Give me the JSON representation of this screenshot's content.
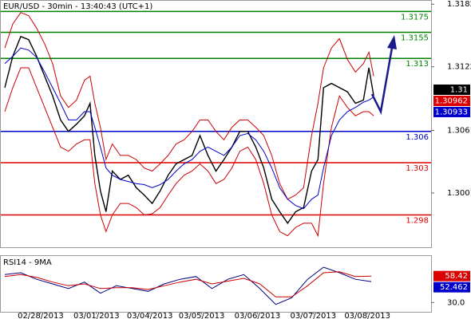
{
  "chart_data": [
    {
      "type": "line",
      "title": "EUR/USD - 30min - 13:40:43 (UTC+1)",
      "xlim": [
        0,
        540
      ],
      "ylim": [
        1.2949,
        1.3186
      ],
      "yticks": [
        1.3182,
        1.3122,
        1.3061,
        1.3001
      ],
      "x": [
        5,
        15,
        25,
        35,
        45,
        55,
        65,
        75,
        85,
        95,
        105,
        112,
        118,
        125,
        132,
        140,
        150,
        160,
        170,
        180,
        190,
        200,
        210,
        220,
        230,
        240,
        250,
        260,
        270,
        280,
        290,
        300,
        310,
        320,
        330,
        340,
        350,
        360,
        370,
        380,
        390,
        398,
        405,
        415,
        425,
        435,
        445,
        455,
        462,
        468
      ],
      "series": [
        {
          "color": "#000000",
          "values": [
            1.3102,
            1.3132,
            1.3151,
            1.3148,
            1.3132,
            1.3113,
            1.3094,
            1.3071,
            1.306,
            1.3067,
            1.3075,
            1.3087,
            1.3037,
            1.3003,
            1.2983,
            1.3022,
            1.3014,
            1.3018,
            1.3006,
            1.2999,
            1.2991,
            1.3003,
            1.3018,
            1.3029,
            1.3033,
            1.3037,
            1.3056,
            1.3037,
            1.3022,
            1.3033,
            1.3045,
            1.306,
            1.306,
            1.3045,
            1.3025,
            1.2995,
            1.2983,
            1.2972,
            1.2983,
            1.2987,
            1.3022,
            1.3033,
            1.3102,
            1.3106,
            1.3102,
            1.3098,
            1.3087,
            1.309,
            1.3121,
            1.3094
          ]
        },
        {
          "color": "#cc0000",
          "values": [
            1.314,
            1.3163,
            1.3174,
            1.3171,
            1.3159,
            1.3144,
            1.3125,
            1.3094,
            1.3083,
            1.309,
            1.3109,
            1.3113,
            1.3087,
            1.3064,
            1.3033,
            1.3048,
            1.3037,
            1.3037,
            1.3033,
            1.3025,
            1.3022,
            1.3029,
            1.3037,
            1.3048,
            1.3052,
            1.306,
            1.3071,
            1.3071,
            1.306,
            1.3052,
            1.3064,
            1.3071,
            1.3071,
            1.3064,
            1.3056,
            1.3037,
            1.301,
            1.2995,
            1.2999,
            1.3006,
            1.3056,
            1.3087,
            1.3121,
            1.314,
            1.3149,
            1.3129,
            1.3117,
            1.3125,
            1.3136,
            1.3113
          ]
        },
        {
          "color": "#cc0000",
          "values": [
            1.3079,
            1.3102,
            1.3121,
            1.3121,
            1.3102,
            1.3083,
            1.3064,
            1.3045,
            1.3041,
            1.3048,
            1.3052,
            1.3052,
            1.301,
            1.298,
            1.2964,
            1.298,
            1.2991,
            1.2991,
            1.2987,
            1.298,
            1.2981,
            1.2987,
            1.2999,
            1.301,
            1.3018,
            1.3022,
            1.3029,
            1.3022,
            1.301,
            1.3014,
            1.3025,
            1.3041,
            1.3045,
            1.3033,
            1.301,
            1.298,
            1.2964,
            1.296,
            1.2968,
            1.2972,
            1.2972,
            1.296,
            1.301,
            1.3064,
            1.3094,
            1.3083,
            1.3075,
            1.3079,
            1.3079,
            1.3075
          ]
        },
        {
          "color": "#0000cc",
          "values": [
            1.3125,
            1.3132,
            1.314,
            1.3138,
            1.3131,
            1.3117,
            1.3102,
            1.3087,
            1.3071,
            1.3071,
            1.3079,
            1.3079,
            1.3064,
            1.3045,
            1.3025,
            1.3018,
            1.3014,
            1.3012,
            1.301,
            1.3009,
            1.3006,
            1.3009,
            1.3014,
            1.3022,
            1.3029,
            1.3033,
            1.3041,
            1.3045,
            1.3041,
            1.3037,
            1.3045,
            1.3056,
            1.3058,
            1.3052,
            1.3041,
            1.3025,
            1.3006,
            1.2995,
            1.2989,
            1.2986,
            1.2995,
            1.2999,
            1.3025,
            1.3056,
            1.3071,
            1.3079,
            1.3083,
            1.3088,
            1.309,
            1.3093
          ]
        }
      ],
      "levels": [
        {
          "value": 1.3175,
          "color": "#008000"
        },
        {
          "value": 1.3155,
          "color": "#008000"
        },
        {
          "value": 1.313,
          "color": "#008000"
        },
        {
          "value": 1.306,
          "color": "#0000cc"
        },
        {
          "value": 1.303,
          "color": "#dd0000"
        },
        {
          "value": 1.298,
          "color": "#dd0000"
        }
      ],
      "markers": [
        {
          "value": 1.31,
          "color": "#000000"
        },
        {
          "value": 1.30962,
          "color": "#dd0000"
        },
        {
          "value": 1.30933,
          "color": "#0000cc"
        }
      ]
    },
    {
      "type": "line",
      "title": "RSI14 - 9MA",
      "xlim": [
        0,
        540
      ],
      "ylim": [
        20,
        80
      ],
      "yticks": [
        {
          "value": 30,
          "label": "30.0"
        }
      ],
      "xticks": [
        {
          "value": 50,
          "label": "02/28/2013"
        },
        {
          "value": 120,
          "label": "03/01/2013"
        },
        {
          "value": 187,
          "label": "03/04/2013"
        },
        {
          "value": 252,
          "label": "03/05/2013"
        },
        {
          "value": 322,
          "label": "03/06/2013"
        },
        {
          "value": 392,
          "label": "03/07/2013"
        },
        {
          "value": 460,
          "label": "03/08/2013"
        }
      ],
      "x": [
        5,
        25,
        45,
        65,
        85,
        105,
        125,
        145,
        165,
        185,
        205,
        225,
        245,
        265,
        285,
        305,
        325,
        345,
        365,
        385,
        405,
        425,
        445,
        465
      ],
      "series": [
        {
          "color": "#000080",
          "values": [
            60,
            62,
            55,
            50,
            45,
            52,
            40,
            48,
            45,
            42,
            50,
            55,
            58,
            45,
            55,
            60,
            45,
            28,
            35,
            55,
            68,
            62,
            55,
            52.462
          ]
        },
        {
          "color": "#cc0000",
          "values": [
            58,
            60,
            57,
            52,
            48,
            50,
            45,
            46,
            46,
            44,
            48,
            52,
            55,
            50,
            53,
            56,
            50,
            36,
            36,
            48,
            62,
            63,
            58,
            58.42
          ]
        }
      ],
      "markers": [
        {
          "value": 58.42,
          "color": "#dd0000"
        },
        {
          "value": 52.462,
          "color": "#0000cc"
        }
      ]
    }
  ]
}
